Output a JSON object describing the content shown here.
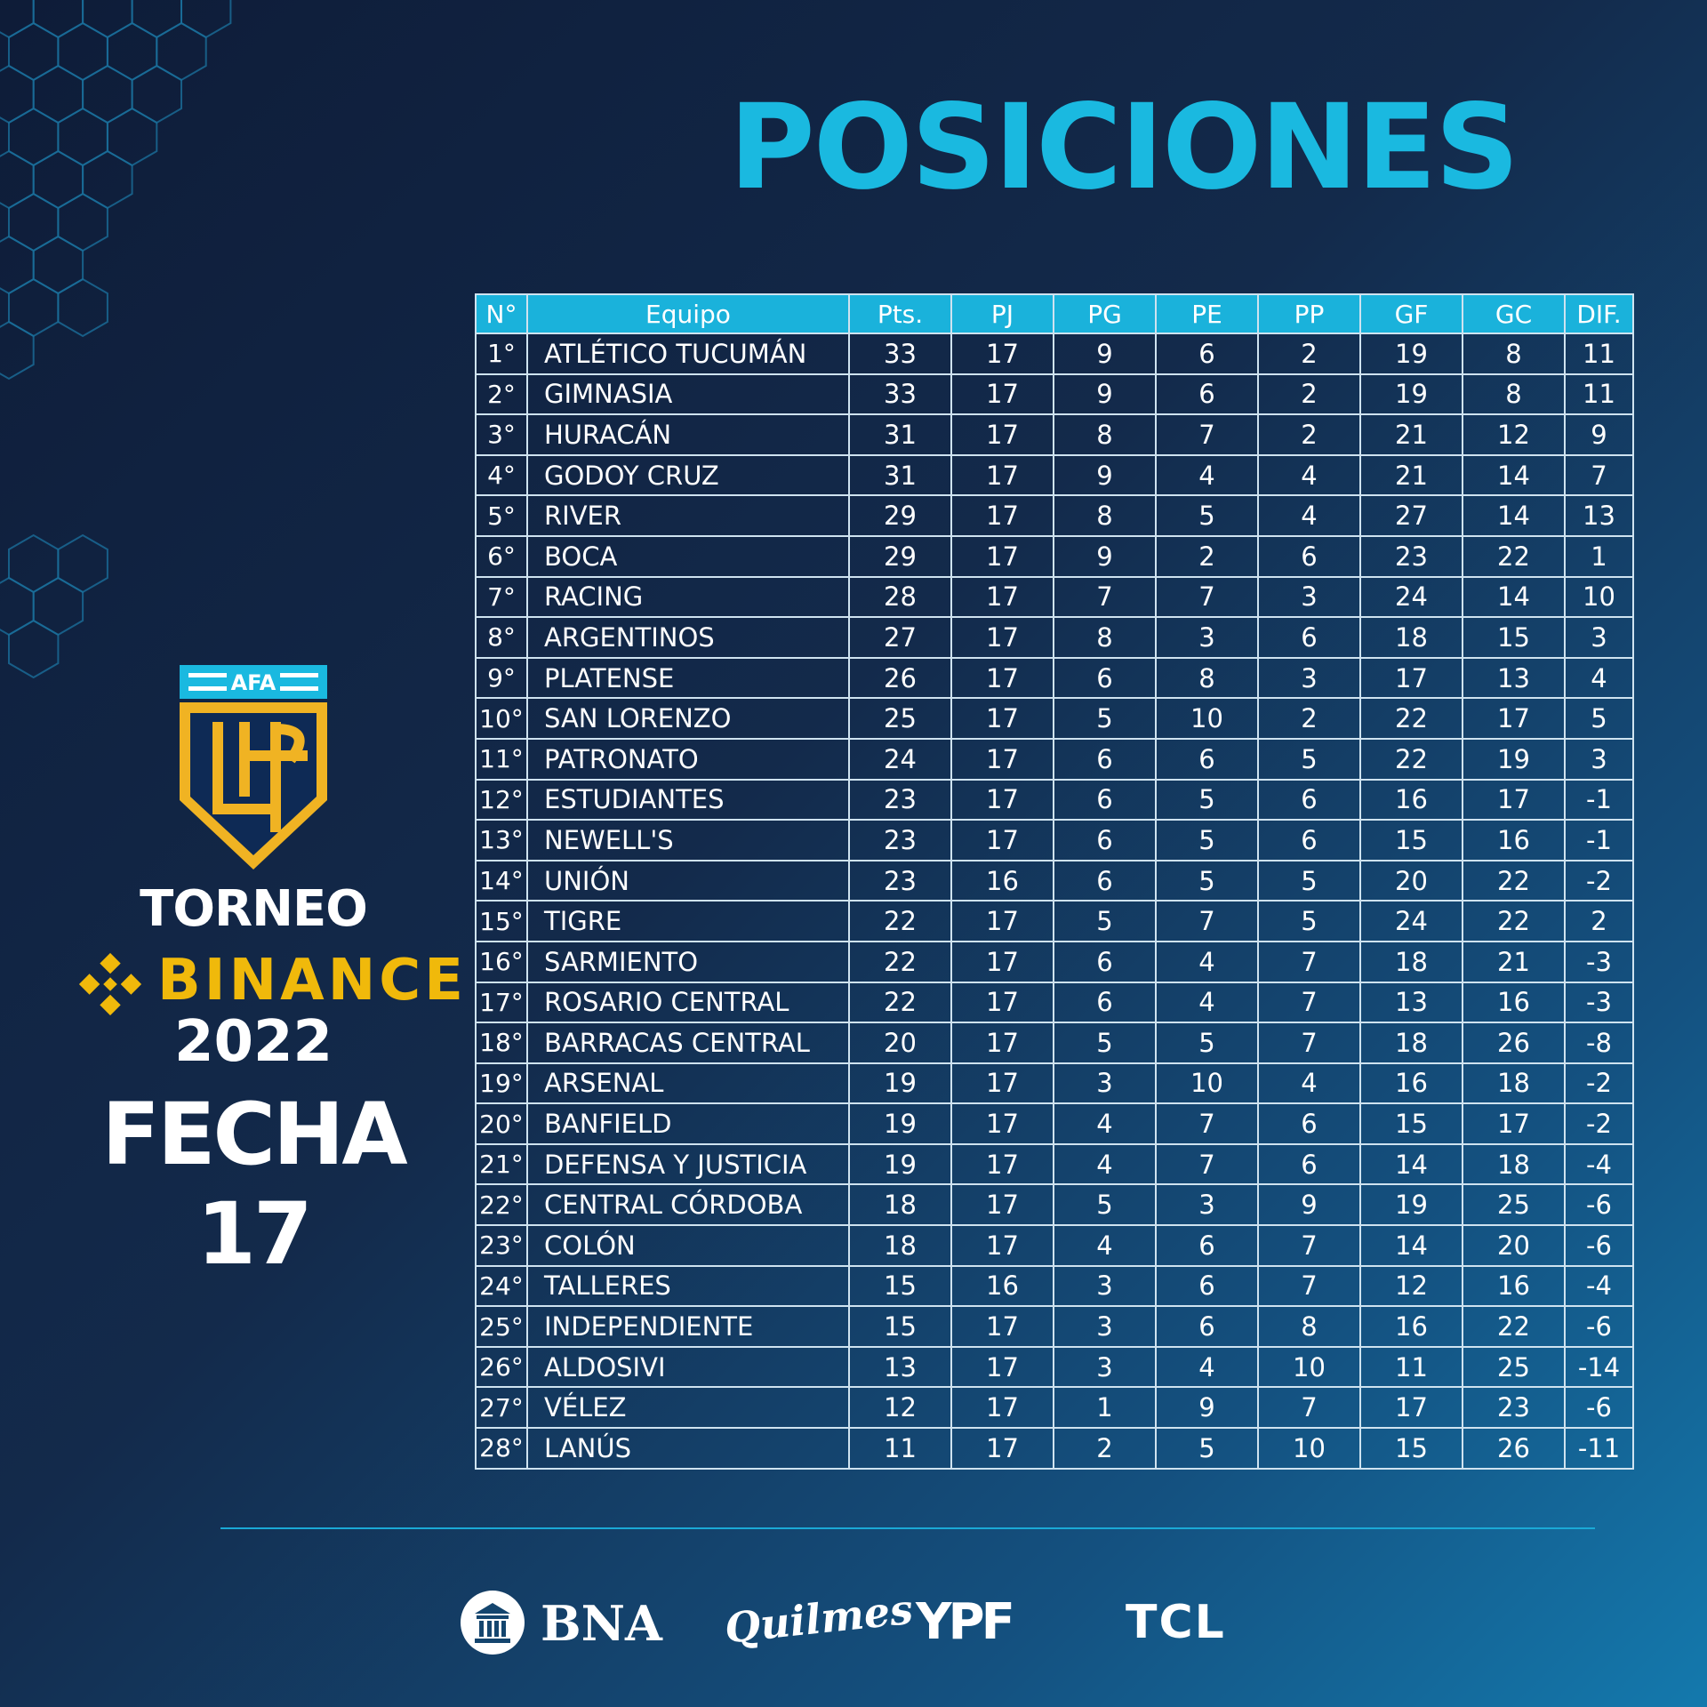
{
  "title": "POSICIONES",
  "table": {
    "headers": [
      "N°",
      "Equipo",
      "Pts.",
      "PJ",
      "PG",
      "PE",
      "PP",
      "GF",
      "GC",
      "DIF."
    ],
    "rows": [
      [
        "1°",
        "ATLÉTICO TUCUMÁN",
        "33",
        "17",
        "9",
        "6",
        "2",
        "19",
        "8",
        "11"
      ],
      [
        "2°",
        "GIMNASIA",
        "33",
        "17",
        "9",
        "6",
        "2",
        "19",
        "8",
        "11"
      ],
      [
        "3°",
        "HURACÁN",
        "31",
        "17",
        "8",
        "7",
        "2",
        "21",
        "12",
        "9"
      ],
      [
        "4°",
        "GODOY CRUZ",
        "31",
        "17",
        "9",
        "4",
        "4",
        "21",
        "14",
        "7"
      ],
      [
        "5°",
        "RIVER",
        "29",
        "17",
        "8",
        "5",
        "4",
        "27",
        "14",
        "13"
      ],
      [
        "6°",
        "BOCA",
        "29",
        "17",
        "9",
        "2",
        "6",
        "23",
        "22",
        "1"
      ],
      [
        "7°",
        "RACING",
        "28",
        "17",
        "7",
        "7",
        "3",
        "24",
        "14",
        "10"
      ],
      [
        "8°",
        "ARGENTINOS",
        "27",
        "17",
        "8",
        "3",
        "6",
        "18",
        "15",
        "3"
      ],
      [
        "9°",
        "PLATENSE",
        "26",
        "17",
        "6",
        "8",
        "3",
        "17",
        "13",
        "4"
      ],
      [
        "10°",
        "SAN LORENZO",
        "25",
        "17",
        "5",
        "10",
        "2",
        "22",
        "17",
        "5"
      ],
      [
        "11°",
        "PATRONATO",
        "24",
        "17",
        "6",
        "6",
        "5",
        "22",
        "19",
        "3"
      ],
      [
        "12°",
        "ESTUDIANTES",
        "23",
        "17",
        "6",
        "5",
        "6",
        "16",
        "17",
        "-1"
      ],
      [
        "13°",
        "NEWELL'S",
        "23",
        "17",
        "6",
        "5",
        "6",
        "15",
        "16",
        "-1"
      ],
      [
        "14°",
        "UNIÓN",
        "23",
        "16",
        "6",
        "5",
        "5",
        "20",
        "22",
        "-2"
      ],
      [
        "15°",
        "TIGRE",
        "22",
        "17",
        "5",
        "7",
        "5",
        "24",
        "22",
        "2"
      ],
      [
        "16°",
        "SARMIENTO",
        "22",
        "17",
        "6",
        "4",
        "7",
        "18",
        "21",
        "-3"
      ],
      [
        "17°",
        "ROSARIO CENTRAL",
        "22",
        "17",
        "6",
        "4",
        "7",
        "13",
        "16",
        "-3"
      ],
      [
        "18°",
        "BARRACAS CENTRAL",
        "20",
        "17",
        "5",
        "5",
        "7",
        "18",
        "26",
        "-8"
      ],
      [
        "19°",
        "ARSENAL",
        "19",
        "17",
        "3",
        "10",
        "4",
        "16",
        "18",
        "-2"
      ],
      [
        "20°",
        "BANFIELD",
        "19",
        "17",
        "4",
        "7",
        "6",
        "15",
        "17",
        "-2"
      ],
      [
        "21°",
        "DEFENSA Y JUSTICIA",
        "19",
        "17",
        "4",
        "7",
        "6",
        "14",
        "18",
        "-4"
      ],
      [
        "22°",
        "CENTRAL CÓRDOBA",
        "18",
        "17",
        "5",
        "3",
        "9",
        "19",
        "25",
        "-6"
      ],
      [
        "23°",
        "COLÓN",
        "18",
        "17",
        "4",
        "6",
        "7",
        "14",
        "20",
        "-6"
      ],
      [
        "24°",
        "TALLERES",
        "15",
        "16",
        "3",
        "6",
        "7",
        "12",
        "16",
        "-4"
      ],
      [
        "25°",
        "INDEPENDIENTE",
        "15",
        "17",
        "3",
        "6",
        "8",
        "16",
        "22",
        "-6"
      ],
      [
        "26°",
        "ALDOSIVI",
        "13",
        "17",
        "3",
        "4",
        "10",
        "11",
        "25",
        "-14"
      ],
      [
        "27°",
        "VÉLEZ",
        "12",
        "17",
        "1",
        "9",
        "7",
        "17",
        "23",
        "-6"
      ],
      [
        "28°",
        "LANÚS",
        "11",
        "17",
        "2",
        "5",
        "10",
        "15",
        "26",
        "-11"
      ]
    ]
  },
  "branding": {
    "afa_label": "AFA",
    "lpf_mark": "LPF",
    "torneo": "TORNEO",
    "binance": "BINANCE",
    "year": "2022",
    "fecha": "FECHA 17",
    "binance_color": "#f0b90b",
    "shield_gold": "#f0b323",
    "shield_blue": "#0e2a55",
    "accent_cyan": "#1ab9e0"
  },
  "sponsors": {
    "bna": "BNA",
    "bna_icon": "bank-building-icon",
    "quilmes": "Quilmes",
    "ypf": "YPF",
    "tcl": "TCL"
  }
}
